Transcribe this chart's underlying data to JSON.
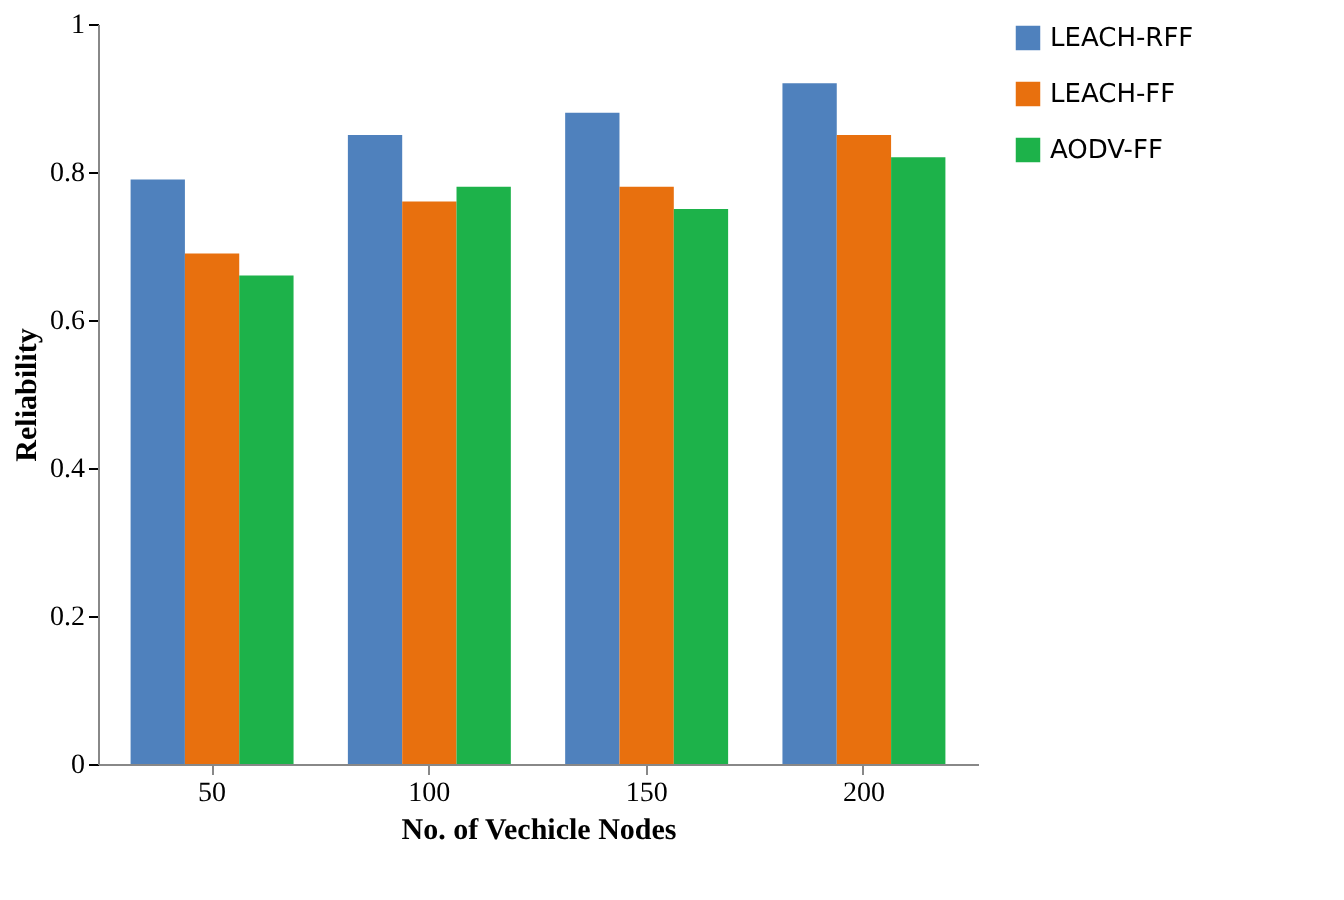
{
  "chart_data": {
    "type": "bar",
    "xlabel": "No. of Vechicle Nodes",
    "ylabel": "Reliability",
    "categories": [
      "50",
      "100",
      "150",
      "200"
    ],
    "series": [
      {
        "name": "LEACH-RFF",
        "color": "#4f81bd",
        "values": [
          0.79,
          0.85,
          0.88,
          0.92
        ]
      },
      {
        "name": "LEACH-FF",
        "color": "#e8700e",
        "values": [
          0.69,
          0.76,
          0.78,
          0.85
        ]
      },
      {
        "name": "AODV-FF",
        "color": "#1db24a",
        "values": [
          0.66,
          0.78,
          0.75,
          0.82
        ]
      }
    ],
    "ylim": [
      0,
      1
    ],
    "yticks": [
      0,
      0.2,
      0.4,
      0.6,
      0.8,
      1
    ],
    "legend": "right",
    "grid": false
  }
}
